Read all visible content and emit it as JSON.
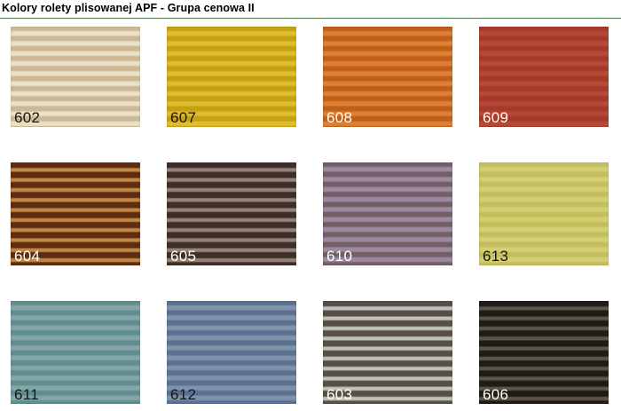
{
  "page": {
    "title": "Kolory rolety plisowanej APF - Grupa cenowa II"
  },
  "colors": {
    "background": "#ffffff",
    "title_text": "#000000",
    "divider_green": "#5b7f5b",
    "divider_highlight": "#dfe9df"
  },
  "swatch_grid": {
    "columns": 4,
    "rows": 3,
    "swatches": [
      {
        "code": "602",
        "name": "beige-cream",
        "light": "#eae1c9",
        "dark": "#cdb794",
        "label_color": "#151515",
        "pattern": "balanced"
      },
      {
        "code": "607",
        "name": "yellow",
        "light": "#dfbc30",
        "dark": "#c5a112",
        "label_color": "#151515",
        "pattern": "balanced"
      },
      {
        "code": "608",
        "name": "orange",
        "light": "#dc8134",
        "dark": "#c05e1a",
        "label_color": "#ffffff",
        "pattern": "balanced"
      },
      {
        "code": "609",
        "name": "brick-red",
        "light": "#b64936",
        "dark": "#a53a2b",
        "label_color": "#ffffff",
        "pattern": "balanced"
      },
      {
        "code": "604",
        "name": "caramel-brown",
        "light": "#c08844",
        "dark": "#5f2c10",
        "label_color": "#ffffff",
        "pattern": "wide-dark"
      },
      {
        "code": "605",
        "name": "dark-brown-taupe",
        "light": "#94837a",
        "dark": "#3f2e26",
        "label_color": "#ffffff",
        "pattern": "wide-dark"
      },
      {
        "code": "610",
        "name": "mauve-purple",
        "light": "#9c8aa0",
        "dark": "#735d66",
        "label_color": "#ffffff",
        "pattern": "balanced"
      },
      {
        "code": "613",
        "name": "yellow-green",
        "light": "#d3cf75",
        "dark": "#c4bf5c",
        "label_color": "#151515",
        "pattern": "balanced"
      },
      {
        "code": "611",
        "name": "teal-gray",
        "light": "#84a6a7",
        "dark": "#608d90",
        "label_color": "#151515",
        "pattern": "balanced"
      },
      {
        "code": "612",
        "name": "denim-blue",
        "light": "#8093ab",
        "dark": "#5b7191",
        "label_color": "#151515",
        "pattern": "balanced"
      },
      {
        "code": "603",
        "name": "gray-brown-stripe",
        "light": "#c1c1bb",
        "dark": "#574f46",
        "label_color": "#ffffff",
        "pattern": "wide-dark"
      },
      {
        "code": "606",
        "name": "black-brown",
        "light": "#5a544b",
        "dark": "#1f1b15",
        "label_color": "#ffffff",
        "pattern": "wide-dark"
      }
    ]
  }
}
